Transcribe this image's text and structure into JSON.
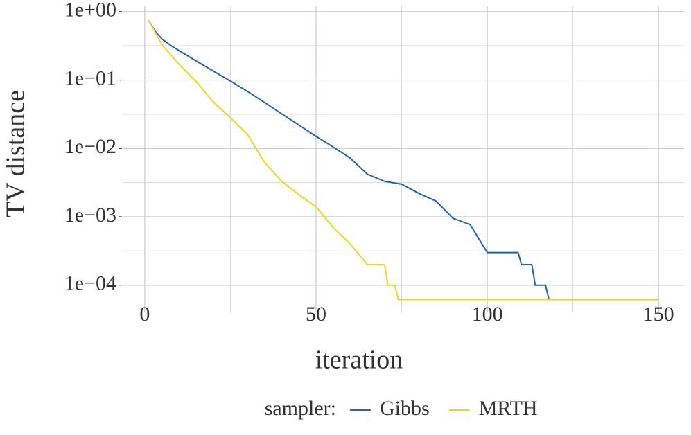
{
  "chart_data": {
    "type": "line",
    "x_label": "iteration",
    "y_label": "TV distance",
    "legend_title": "sampler:",
    "legend_position": "bottom",
    "log_y": true,
    "grid": true,
    "xlim": [
      -6.45,
      157.45
    ],
    "ylim": [
      4e-05,
      1.2
    ],
    "xticks": [
      0,
      50,
      100,
      150
    ],
    "x_minor_ticks": [
      25,
      75,
      125
    ],
    "yticks": [
      {
        "value": 1,
        "label": "1e+00"
      },
      {
        "value": 0.1,
        "label": "1e−01"
      },
      {
        "value": 0.01,
        "label": "1e−02"
      },
      {
        "value": 0.001,
        "label": "1e−03"
      },
      {
        "value": 0.0001,
        "label": "1e−04"
      }
    ],
    "y_minor_ticks": [
      0.3162,
      0.03162,
      0.003162,
      0.0003162
    ],
    "series": [
      {
        "name": "Gibbs",
        "color": "#1f64b5",
        "x": [
          1,
          2,
          3,
          5,
          8,
          10,
          15,
          20,
          25,
          30,
          35,
          40,
          45,
          50,
          55,
          60,
          65,
          70,
          75,
          80,
          85,
          90,
          95,
          100,
          105,
          109,
          110,
          113,
          114,
          117,
          118,
          150
        ],
        "values": [
          0.75,
          0.63,
          0.52,
          0.4,
          0.31,
          0.27,
          0.19,
          0.135,
          0.097,
          0.068,
          0.047,
          0.032,
          0.022,
          0.015,
          0.0105,
          0.0072,
          0.0042,
          0.0033,
          0.003,
          0.0022,
          0.0017,
          0.00095,
          0.00077,
          0.0003,
          0.0003,
          0.0003,
          0.0002,
          0.0002,
          0.0001,
          0.0001,
          6.2e-05,
          6.2e-05
        ]
      },
      {
        "name": "MRTH",
        "color": "#f5d31e",
        "x": [
          1,
          2,
          3,
          5,
          8,
          10,
          15,
          20,
          25,
          30,
          35,
          40,
          45,
          50,
          55,
          60,
          65,
          70,
          71,
          73,
          74,
          150
        ],
        "values": [
          0.75,
          0.62,
          0.5,
          0.33,
          0.22,
          0.17,
          0.095,
          0.048,
          0.028,
          0.016,
          0.0062,
          0.0033,
          0.0021,
          0.0014,
          0.0007,
          0.0004,
          0.0002,
          0.0002,
          0.0001,
          0.0001,
          6.2e-05,
          6.2e-05
        ]
      }
    ]
  }
}
